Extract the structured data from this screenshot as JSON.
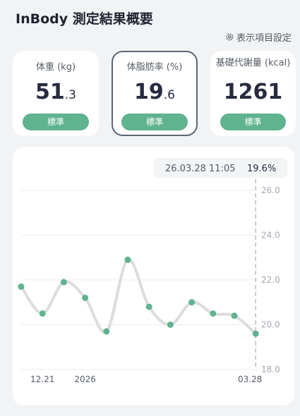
{
  "header": {
    "title": "InBody 測定結果概要",
    "settings": "表示項目設定"
  },
  "cards": [
    {
      "label": "体重 (kg)",
      "value_main": "51",
      "value_decimal": ".3",
      "status": "標準"
    },
    {
      "label": "体脂肪率 (%)",
      "value_main": "19",
      "value_decimal": ".6",
      "status": "標準"
    },
    {
      "label": "基礎代謝量 (kcal)",
      "value_main": "1261",
      "status": "標準"
    }
  ],
  "chart_data": {
    "type": "line",
    "tooltip": {
      "time": "26.03.28 11:05",
      "value": "19.6%"
    },
    "categories": [
      null,
      "12.21",
      null,
      "2026",
      null,
      null,
      null,
      null,
      null,
      null,
      null,
      "03.28"
    ],
    "values": [
      21.7,
      20.5,
      21.9,
      21.2,
      19.7,
      22.9,
      20.8,
      20.0,
      21.0,
      20.5,
      20.4,
      19.6
    ],
    "color": "#5fb38f",
    "ylim": [
      18,
      26
    ],
    "yticks": [
      {
        "value": 26,
        "label": "26.0"
      },
      {
        "value": 24,
        "label": "24.0"
      },
      {
        "value": 22,
        "label": "22.0"
      },
      {
        "value": 20,
        "label": "20.0"
      },
      {
        "value": 18,
        "label": "18.0"
      }
    ],
    "grid": true
  }
}
